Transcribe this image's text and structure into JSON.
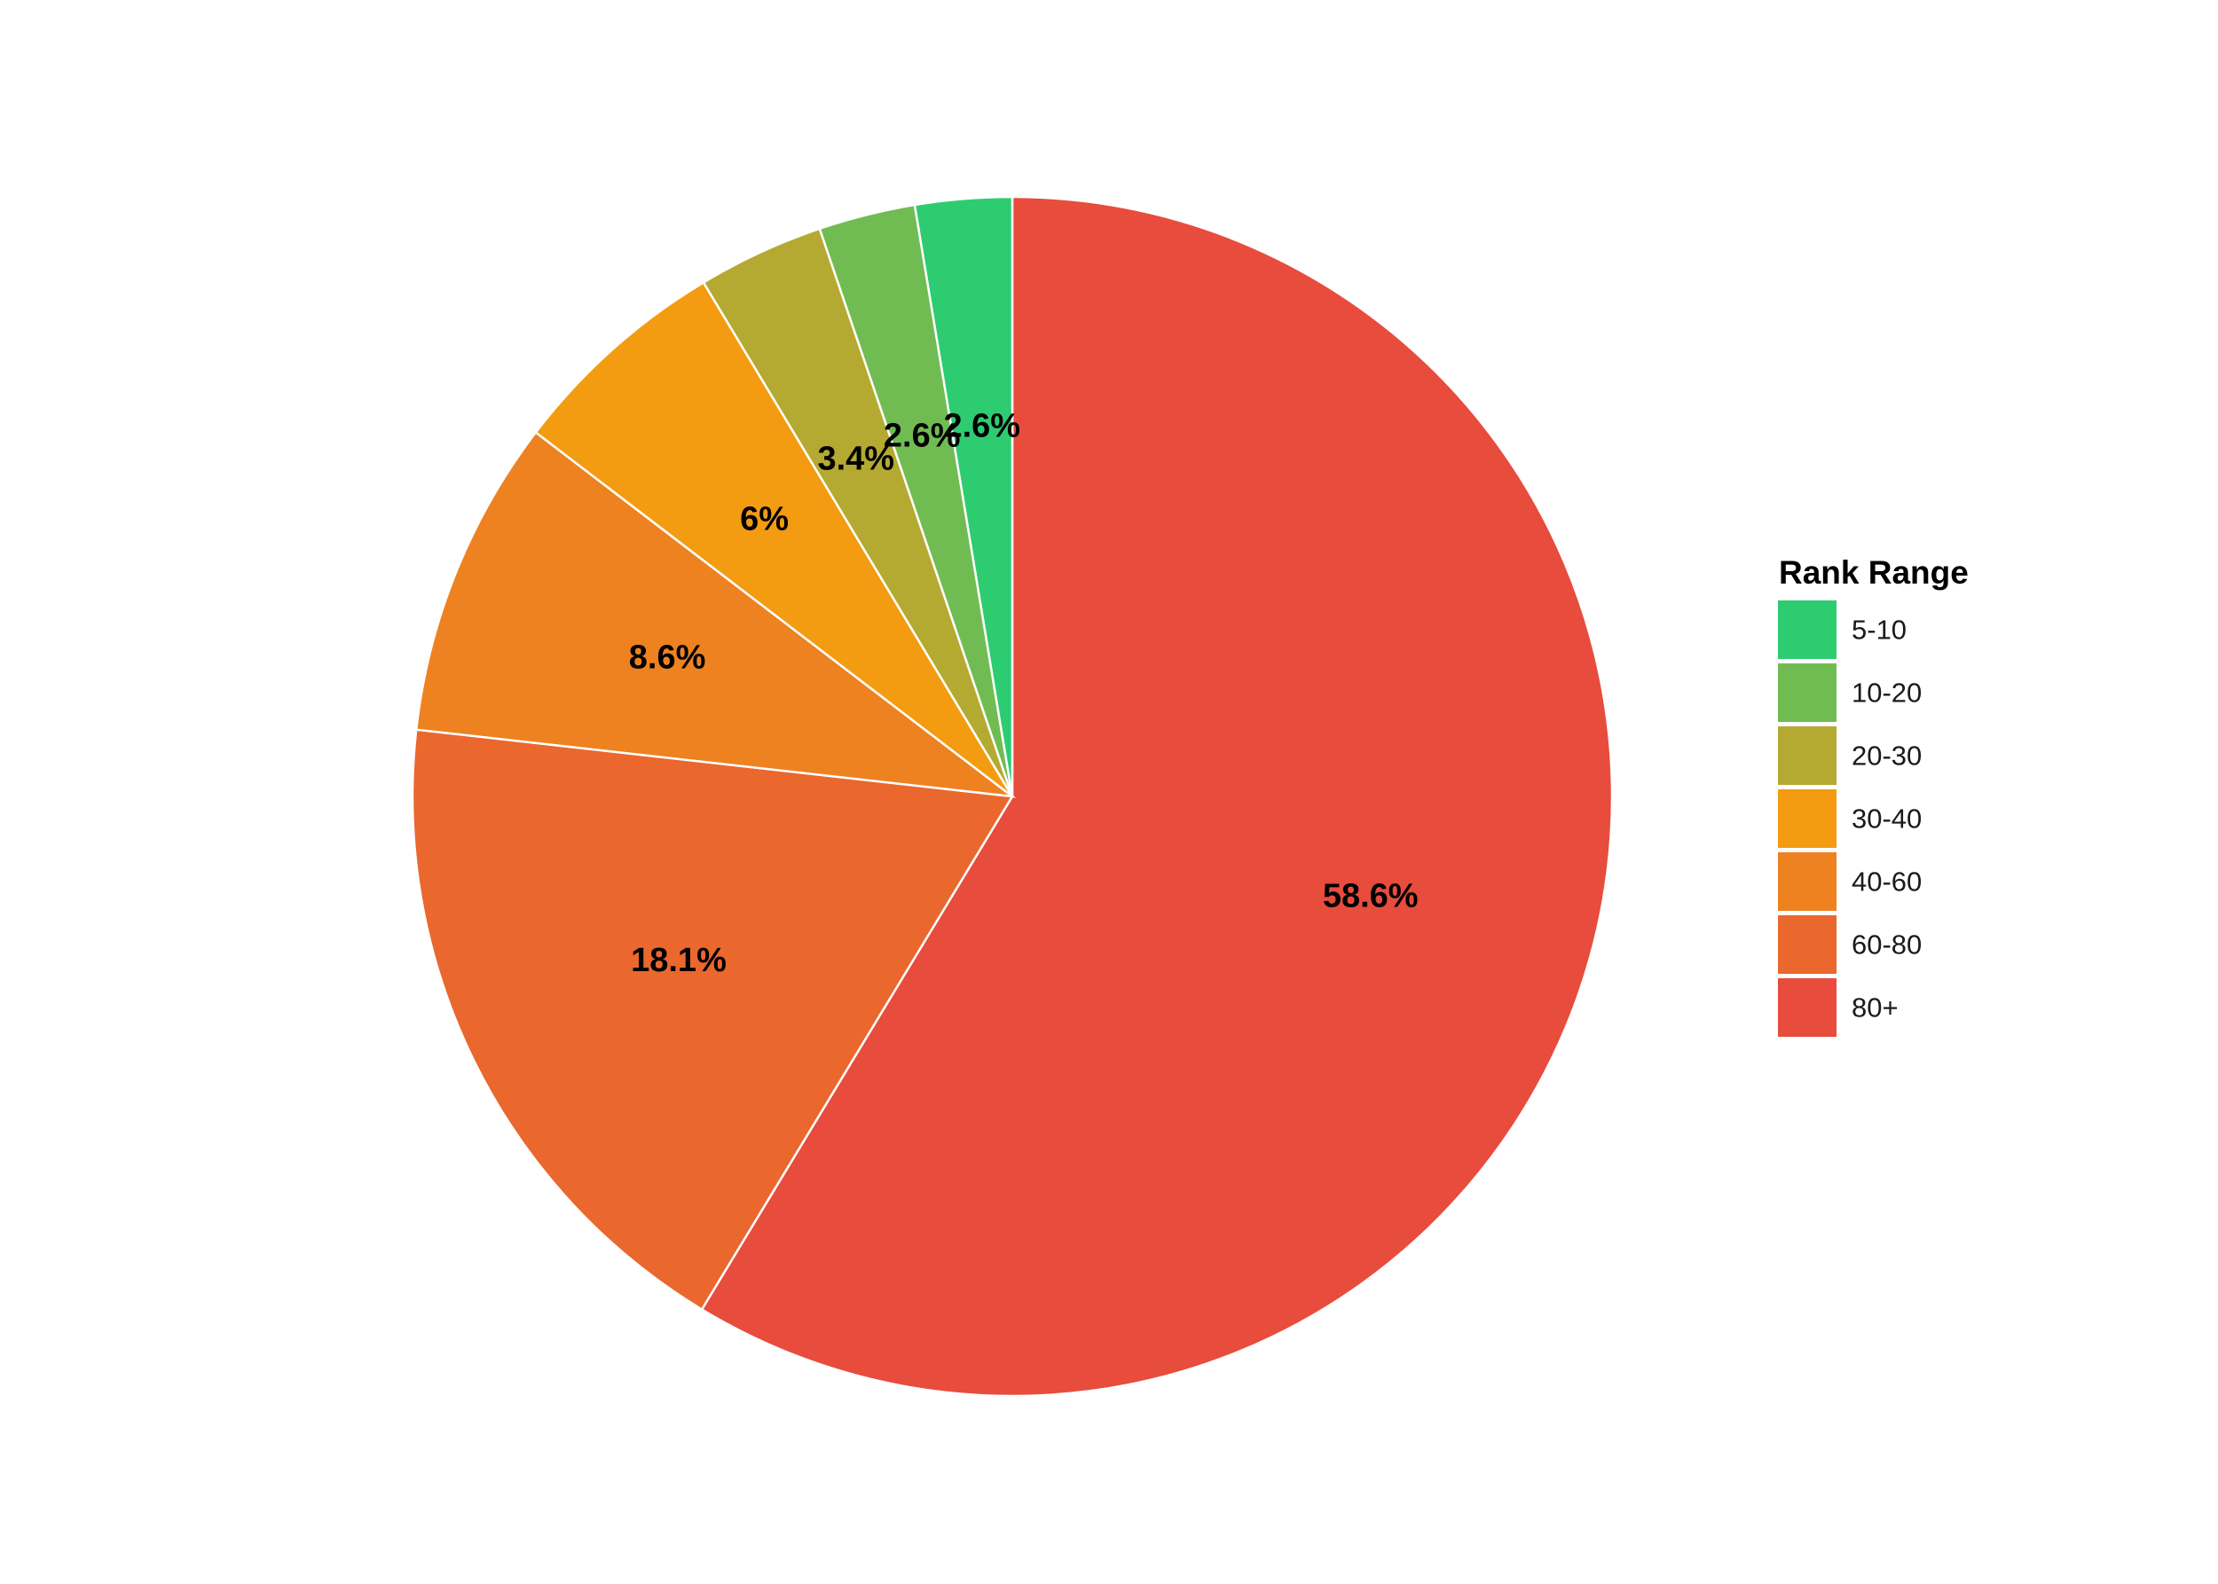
{
  "chart_data": {
    "type": "pie",
    "start_angle": "12 o'clock",
    "direction": "counter-clockwise",
    "legend": {
      "title": "Rank Range",
      "placement": "right"
    },
    "slices": [
      {
        "category": "80+",
        "value": 58.6,
        "label": "58.6%",
        "color": "#e74c3c"
      },
      {
        "category": "60-80",
        "value": 18.1,
        "label": "18.1%",
        "color": "#ea672d"
      },
      {
        "category": "40-60",
        "value": 8.6,
        "label": "8.6%",
        "color": "#ee8220"
      },
      {
        "category": "30-40",
        "value": 6,
        "label": "6%",
        "color": "#f39c12"
      },
      {
        "category": "20-30",
        "value": 3.4,
        "label": "3.4%",
        "color": "#b5aa31"
      },
      {
        "category": "10-20",
        "value": 2.6,
        "label": "2.6%",
        "color": "#71bc52"
      },
      {
        "category": "5-10",
        "value": 2.6,
        "label": "2.6%",
        "color": "#2ecc71"
      }
    ],
    "legend_order": [
      "5-10",
      "10-20",
      "20-30",
      "30-40",
      "40-60",
      "60-80",
      "80+"
    ]
  }
}
